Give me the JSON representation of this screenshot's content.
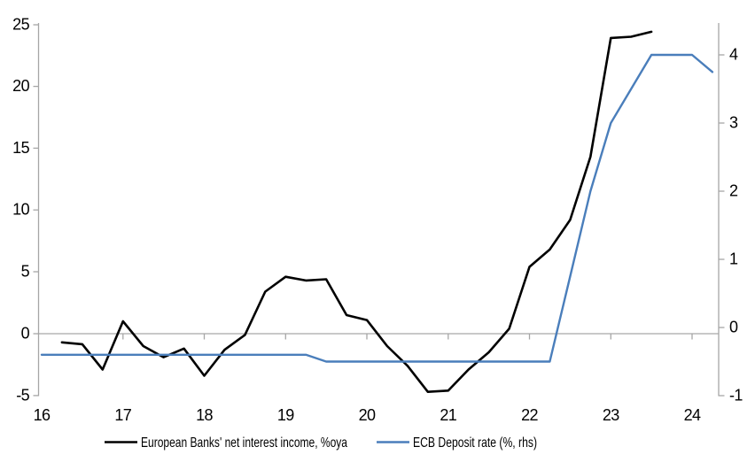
{
  "chart_data": {
    "type": "line",
    "title": "",
    "xlabel": "",
    "ylabel_left": "",
    "ylabel_right": "",
    "x_ticks": [
      16,
      17,
      18,
      19,
      20,
      21,
      22,
      23,
      24
    ],
    "left_axis": {
      "ticks": [
        25,
        20,
        15,
        10,
        5,
        0,
        -5
      ],
      "range": [
        -5,
        25
      ]
    },
    "right_axis": {
      "ticks": [
        4,
        3,
        2,
        1,
        0,
        -1
      ],
      "range": [
        -1,
        4.45
      ]
    },
    "grid": "zero-line-only",
    "legend_position": "bottom",
    "series": [
      {
        "name": "European Banks' net interest income, %oya",
        "axis": "left",
        "color": "#000000",
        "x": [
          16.25,
          16.5,
          16.75,
          17,
          17.25,
          17.5,
          17.75,
          18,
          18.25,
          18.5,
          18.75,
          19,
          19.25,
          19.5,
          19.75,
          20,
          20.25,
          20.5,
          20.75,
          21,
          21.25,
          21.5,
          21.75,
          22,
          22.25,
          22.5,
          22.75,
          23,
          23.25,
          23.5
        ],
        "values": [
          -0.7,
          -0.85,
          -2.9,
          1.0,
          -1.0,
          -1.9,
          -1.2,
          -3.4,
          -1.3,
          -0.1,
          3.4,
          4.6,
          4.3,
          4.4,
          1.5,
          1.1,
          -1.0,
          -2.6,
          -4.7,
          -4.6,
          -2.9,
          -1.5,
          0.4,
          5.4,
          6.8,
          9.2,
          14.3,
          23.9,
          24.0,
          24.4
        ]
      },
      {
        "name": "ECB Deposit rate (%, rhs)",
        "axis": "right",
        "color": "#4a7ebb",
        "x": [
          16,
          16.25,
          16.5,
          16.75,
          17,
          17.25,
          17.5,
          17.75,
          18,
          18.25,
          18.5,
          18.75,
          19,
          19.25,
          19.5,
          19.75,
          20,
          20.25,
          20.5,
          20.75,
          21,
          21.25,
          21.5,
          21.75,
          22,
          22.25,
          22.5,
          22.75,
          23,
          23.25,
          23.5,
          23.75,
          24,
          24.25
        ],
        "values": [
          -0.4,
          -0.4,
          -0.4,
          -0.4,
          -0.4,
          -0.4,
          -0.4,
          -0.4,
          -0.4,
          -0.4,
          -0.4,
          -0.4,
          -0.4,
          -0.4,
          -0.5,
          -0.5,
          -0.5,
          -0.5,
          -0.5,
          -0.5,
          -0.5,
          -0.5,
          -0.5,
          -0.5,
          -0.5,
          -0.5,
          0.75,
          2.0,
          3.0,
          3.5,
          4.0,
          4.0,
          4.0,
          3.75
        ]
      }
    ]
  },
  "colors": {
    "axis_gray": "#a6a6a6",
    "series_black": "#000000",
    "series_blue": "#4a7ebb",
    "background": "#ffffff"
  }
}
